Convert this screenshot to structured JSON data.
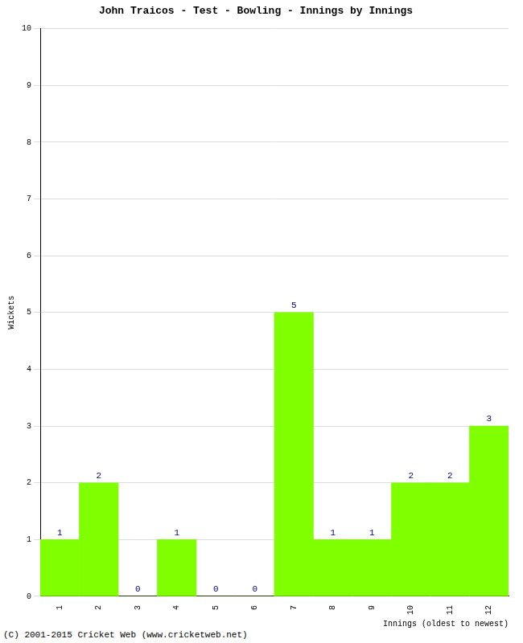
{
  "chart_data": {
    "type": "bar",
    "title": "John Traicos - Test - Bowling - Innings by Innings",
    "x_label": "Innings (oldest to newest)",
    "y_label": "Wickets",
    "footer": "(C) 2001-2015 Cricket Web (www.cricketweb.net)",
    "categories": [
      "1",
      "2",
      "3",
      "4",
      "5",
      "6",
      "7",
      "8",
      "9",
      "10",
      "11",
      "12"
    ],
    "values": [
      1,
      2,
      0,
      1,
      0,
      0,
      5,
      1,
      1,
      2,
      2,
      3
    ],
    "color": "#80ff00",
    "ylim": [
      0,
      10
    ],
    "yticks": [
      0,
      1,
      2,
      3,
      4,
      5,
      6,
      7,
      8,
      9,
      10
    ],
    "grid": true,
    "data_labels": true
  }
}
